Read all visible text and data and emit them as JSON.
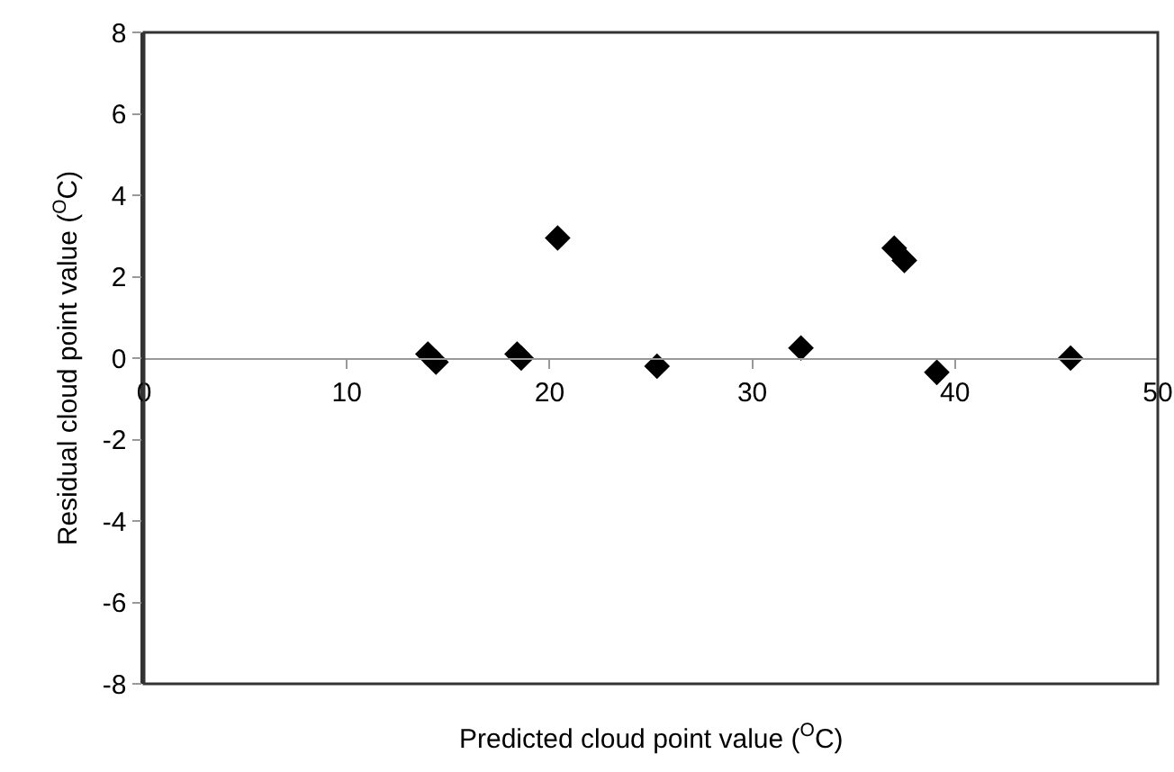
{
  "chart_data": {
    "type": "scatter",
    "xlabel": "Predicted cloud point value ($^{O}$C)",
    "ylabel": "Residual cloud point value ($^{O}$C)",
    "x": [
      14.0,
      14.4,
      18.4,
      18.6,
      20.4,
      25.3,
      32.4,
      37.0,
      37.5,
      39.1,
      45.7
    ],
    "values": [
      0.1,
      -0.1,
      0.1,
      0.0,
      2.95,
      -0.2,
      0.25,
      2.7,
      2.4,
      -0.35,
      0.0
    ],
    "color": "#000000",
    "marker": "diamond",
    "xlim": [
      0,
      50
    ],
    "xticks": [
      0,
      10,
      20,
      30,
      40,
      50
    ],
    "ylim": [
      -8,
      8
    ],
    "yticks": [
      -8,
      -6,
      -4,
      -2,
      0,
      2,
      4,
      6,
      8
    ],
    "grid": false,
    "legend": false
  }
}
